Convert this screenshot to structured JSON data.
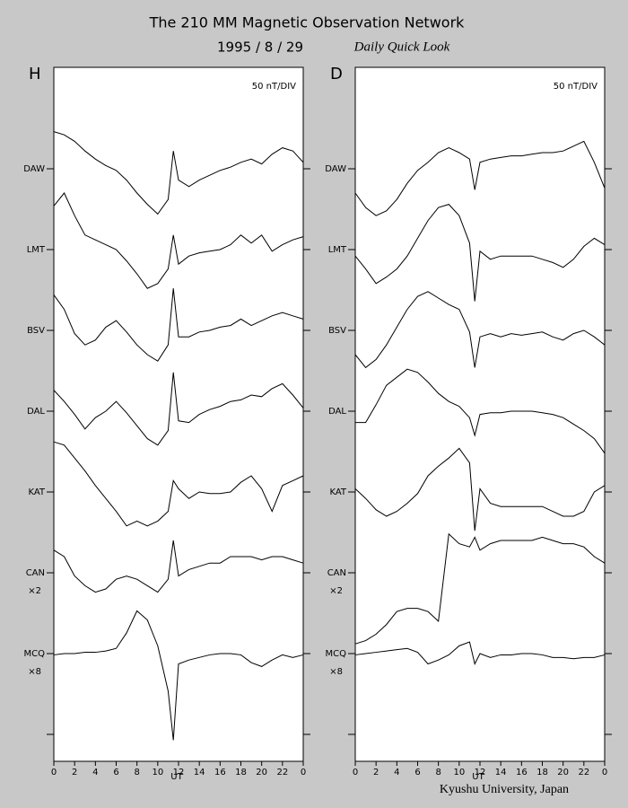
{
  "header": {
    "title": "The 210 MM Magnetic Observation Network",
    "date": "1995  /  8  /  29",
    "subtitle": "Daily Quick Look"
  },
  "footer": "Kyushu University, Japan",
  "chart_data": [
    {
      "type": "line",
      "panel_label": "H",
      "note": "50 nT/DIV",
      "nt_per_div": 50,
      "x_label": "UT",
      "xlim": [
        0,
        24
      ],
      "xticks": [
        0,
        2,
        4,
        6,
        8,
        10,
        12,
        14,
        16,
        18,
        20,
        22,
        {
          "value": 24,
          "label": "0"
        }
      ],
      "x": [
        0,
        1,
        2,
        3,
        4,
        5,
        6,
        7,
        8,
        9,
        10,
        11,
        11.5,
        12,
        13,
        14,
        15,
        16,
        17,
        18,
        19,
        20,
        21,
        22,
        23,
        24
      ],
      "color": "#000000",
      "series": [
        {
          "name": "DAW",
          "scale": 1,
          "values": [
            23,
            21,
            17,
            11,
            6,
            2,
            -1,
            -7,
            -15,
            -22,
            -28,
            -19,
            11,
            -7,
            -11,
            -7,
            -4,
            -1,
            1,
            4,
            6,
            3,
            9,
            13,
            11,
            4
          ]
        },
        {
          "name": "LMT",
          "scale": 1,
          "values": [
            27,
            35,
            21,
            9,
            6,
            3,
            0,
            -7,
            -15,
            -24,
            -21,
            -12,
            9,
            -9,
            -4,
            -2,
            -1,
            0,
            3,
            9,
            4,
            9,
            -1,
            3,
            6,
            8
          ]
        },
        {
          "name": "BSV",
          "scale": 1,
          "values": [
            22,
            13,
            -2,
            -9,
            -6,
            2,
            6,
            -1,
            -9,
            -15,
            -19,
            -9,
            26,
            -4,
            -4,
            -1,
            0,
            2,
            3,
            7,
            3,
            6,
            9,
            11,
            9,
            7
          ]
        },
        {
          "name": "DAL",
          "scale": 1,
          "values": [
            13,
            6,
            -2,
            -11,
            -4,
            0,
            6,
            -1,
            -9,
            -17,
            -21,
            -12,
            24,
            -6,
            -7,
            -2,
            1,
            3,
            6,
            7,
            10,
            9,
            14,
            17,
            10,
            2
          ]
        },
        {
          "name": "KAT",
          "scale": 1,
          "values": [
            31,
            29,
            21,
            13,
            4,
            -4,
            -12,
            -21,
            -18,
            -21,
            -18,
            -12,
            7,
            2,
            -4,
            0,
            -1,
            -1,
            0,
            6,
            10,
            2,
            -12,
            4,
            7,
            10
          ]
        },
        {
          "name": "CAN",
          "note": "×2",
          "scale": 2,
          "values": [
            7,
            5,
            -1,
            -4,
            -6,
            -5,
            -2,
            -1,
            -2,
            -4,
            -6,
            -2,
            10,
            -1,
            1,
            2,
            3,
            3,
            5,
            5,
            5,
            4,
            5,
            5,
            4,
            3
          ]
        },
        {
          "name": "MCQ",
          "note": "×8",
          "scale": 8,
          "values": [
            -0.1,
            0,
            0,
            0.1,
            0.1,
            0.2,
            0.4,
            1.6,
            3.3,
            2.6,
            0.6,
            -2.9,
            -6.7,
            -0.8,
            -0.5,
            -0.3,
            -0.1,
            0,
            0,
            -0.1,
            -0.7,
            -1,
            -0.5,
            -0.1,
            -0.3,
            -0.1
          ]
        }
      ]
    },
    {
      "type": "line",
      "panel_label": "D",
      "note": "50 nT/DIV",
      "nt_per_div": 50,
      "x_label": "UT",
      "xlim": [
        0,
        24
      ],
      "xticks": [
        0,
        2,
        4,
        6,
        8,
        10,
        12,
        14,
        16,
        18,
        20,
        22,
        {
          "value": 24,
          "label": "0"
        }
      ],
      "x": [
        0,
        1,
        2,
        3,
        4,
        5,
        6,
        7,
        8,
        9,
        10,
        11,
        11.5,
        12,
        13,
        14,
        15,
        16,
        17,
        18,
        19,
        20,
        21,
        22,
        23,
        24
      ],
      "color": "#000000",
      "series": [
        {
          "name": "DAW",
          "scale": 1,
          "values": [
            -15,
            -24,
            -29,
            -26,
            -19,
            -9,
            -1,
            4,
            10,
            13,
            10,
            6,
            -13,
            4,
            6,
            7,
            8,
            8,
            9,
            10,
            10,
            11,
            14,
            17,
            4,
            -12
          ]
        },
        {
          "name": "LMT",
          "scale": 1,
          "values": [
            -4,
            -12,
            -21,
            -17,
            -12,
            -4,
            7,
            18,
            26,
            28,
            21,
            4,
            -32,
            -1,
            -6,
            -4,
            -4,
            -4,
            -4,
            -6,
            -8,
            -11,
            -6,
            2,
            7,
            3
          ]
        },
        {
          "name": "BSV",
          "scale": 1,
          "values": [
            -15,
            -23,
            -18,
            -9,
            2,
            13,
            21,
            24,
            20,
            16,
            13,
            -1,
            -23,
            -4,
            -2,
            -4,
            -2,
            -3,
            -2,
            -1,
            -4,
            -6,
            -2,
            0,
            -4,
            -9
          ]
        },
        {
          "name": "DAL",
          "scale": 1,
          "values": [
            -7,
            -7,
            4,
            16,
            21,
            26,
            24,
            18,
            11,
            6,
            3,
            -4,
            -15,
            -2,
            -1,
            -1,
            0,
            0,
            0,
            -1,
            -2,
            -4,
            -8,
            -12,
            -17,
            -26
          ]
        },
        {
          "name": "KAT",
          "scale": 1,
          "values": [
            2,
            -4,
            -11,
            -15,
            -12,
            -7,
            -1,
            10,
            16,
            21,
            27,
            18,
            -24,
            2,
            -7,
            -9,
            -9,
            -9,
            -9,
            -9,
            -12,
            -15,
            -15,
            -12,
            0,
            4
          ]
        },
        {
          "name": "CAN",
          "note": "×2",
          "scale": 2,
          "values": [
            -22,
            -21,
            -19,
            -16,
            -12,
            -11,
            -11,
            -12,
            -15,
            12,
            9,
            8,
            11,
            7,
            9,
            10,
            10,
            10,
            10,
            11,
            10,
            9,
            9,
            8,
            5,
            3
          ]
        },
        {
          "name": "MCQ",
          "note": "×8",
          "scale": 8,
          "values": [
            -0.1,
            0,
            0.1,
            0.2,
            0.3,
            0.4,
            0.1,
            -0.8,
            -0.5,
            -0.1,
            0.6,
            0.9,
            -0.8,
            0,
            -0.3,
            -0.1,
            -0.1,
            0,
            0,
            -0.1,
            -0.3,
            -0.3,
            -0.4,
            -0.3,
            -0.3,
            -0.1
          ]
        }
      ]
    }
  ]
}
